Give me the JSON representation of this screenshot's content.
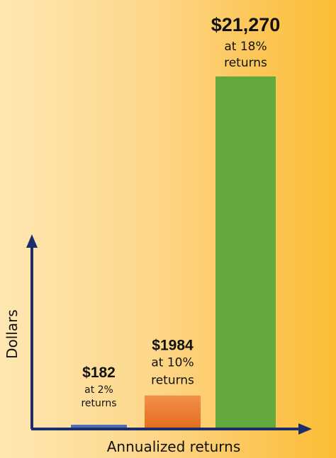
{
  "chart_data": {
    "type": "bar",
    "xlabel": "Annualized returns",
    "ylabel": "Dollars",
    "ylim": [
      0,
      21270
    ],
    "grid": false,
    "legend": "none",
    "categories": [
      "2%",
      "10%",
      "18%"
    ],
    "values": [
      182,
      1984,
      21270
    ],
    "data_labels": [
      {
        "value": "$182",
        "line1": "at 2%",
        "line2": "returns"
      },
      {
        "value": "$1984",
        "line1": "at 10%",
        "line2": "returns"
      },
      {
        "value": "$21,270",
        "line1": "at 18%",
        "line2": "returns"
      }
    ],
    "colors": [
      "#4a6fb5",
      "#ec7a2c",
      "#63a83b"
    ],
    "axis_color": "#1c2d6b"
  }
}
